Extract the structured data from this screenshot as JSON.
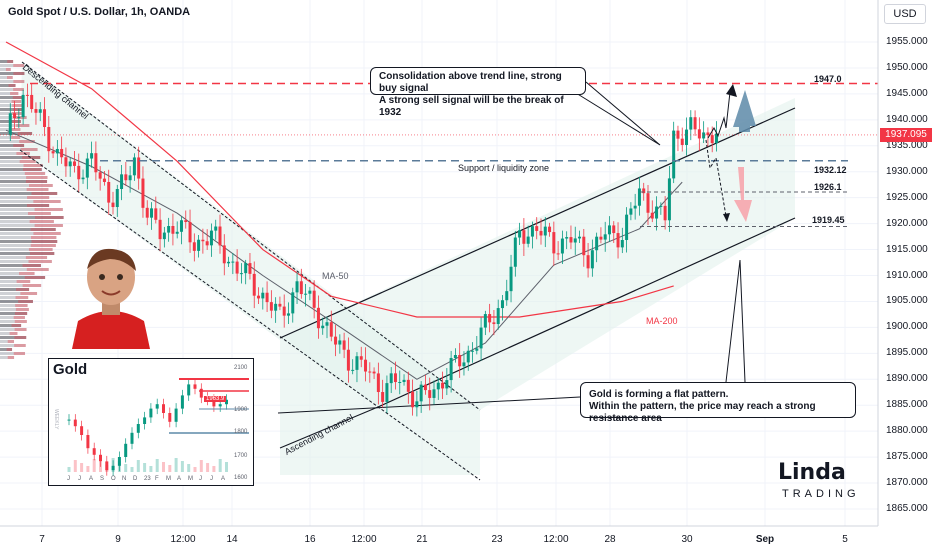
{
  "header": {
    "title": "Gold Spot / U.S. Dollar, 1h, OANDA",
    "currency": "USD"
  },
  "y_axis": {
    "ticks": [
      1955,
      1950,
      1945,
      1940,
      1935,
      1930,
      1925,
      1920,
      1915,
      1910,
      1905,
      1900,
      1895,
      1890,
      1885,
      1880,
      1875,
      1870,
      1865
    ],
    "tick_labels": [
      "1955.000",
      "1950.000",
      "1945.000",
      "1940.000",
      "1935.000",
      "1930.000",
      "1925.000",
      "1920.000",
      "1915.000",
      "1910.000",
      "1905.000",
      "1900.000",
      "1895.000",
      "1890.000",
      "1885.000",
      "1880.000",
      "1875.000",
      "1870.000",
      "1865.000"
    ]
  },
  "x_axis": {
    "labels": [
      "7",
      "9",
      "12:00",
      "14",
      "16",
      "12:00",
      "21",
      "23",
      "12:00",
      "28",
      "30",
      "Sep",
      "5"
    ],
    "bold": [
      "Sep"
    ]
  },
  "levels": [
    {
      "label": "1947.0",
      "value": 1947.0
    },
    {
      "label": "1932.12",
      "value": 1932.12
    },
    {
      "label": "1926.1",
      "value": 1926.1
    },
    {
      "label": "1919.45",
      "value": 1919.45
    }
  ],
  "current_price": {
    "label": "1937.095",
    "value": 1937.095
  },
  "annotations": {
    "callout_top_line1": "Consolidation above trend line, strong buy signal",
    "callout_top_line2": "A strong sell signal will be the break of 1932",
    "callout_bottom_line1": "Gold is forming a flat pattern.",
    "callout_bottom_line2": "Within the pattern, the price may reach a strong resistance area",
    "support_zone": "Support / liquidity zone",
    "descending_channel": "Descending channel",
    "ascending_channel": "Ascending channel",
    "ma50": "MA-50",
    "ma200": "MA-200"
  },
  "inset": {
    "title": "Gold",
    "y_labels": [
      "2100",
      "1900",
      "1800",
      "1700",
      "1600"
    ],
    "price_tag": "1963.9",
    "x_labels": [
      "J",
      "J",
      "A",
      "S",
      "O",
      "N",
      "D",
      "23",
      "F",
      "M",
      "A",
      "M",
      "J",
      "J",
      "A"
    ],
    "watermark": "WEEKLY"
  },
  "logo": {
    "top": "Linda",
    "bottom": "TRADING"
  },
  "colors": {
    "up": "#089981",
    "down": "#f23645",
    "ma200": "#f23645",
    "ma50": "#5d606b",
    "channel_fill": "#e3f1ec",
    "badge": "#f23645"
  },
  "chart_data": {
    "type": "candlestick",
    "timeframe": "1h",
    "ylim": [
      1862,
      1960
    ],
    "close_path": [
      [
        0,
        1937
      ],
      [
        4,
        1945
      ],
      [
        8,
        1940
      ],
      [
        12,
        1933
      ],
      [
        16,
        1930
      ],
      [
        20,
        1932
      ],
      [
        24,
        1925
      ],
      [
        28,
        1928
      ],
      [
        30,
        1932
      ],
      [
        33,
        1922
      ],
      [
        36,
        1918
      ],
      [
        40,
        1920
      ],
      [
        44,
        1916
      ],
      [
        48,
        1918
      ],
      [
        52,
        1913
      ],
      [
        56,
        1910
      ],
      [
        60,
        1906
      ],
      [
        64,
        1902
      ],
      [
        68,
        1908
      ],
      [
        72,
        1904
      ],
      [
        76,
        1898
      ],
      [
        80,
        1894
      ],
      [
        84,
        1892
      ],
      [
        88,
        1888
      ],
      [
        92,
        1890
      ],
      [
        96,
        1886
      ],
      [
        100,
        1888
      ],
      [
        104,
        1892
      ],
      [
        108,
        1895
      ],
      [
        112,
        1900
      ],
      [
        116,
        1905
      ],
      [
        120,
        1918
      ],
      [
        124,
        1919
      ],
      [
        128,
        1916
      ],
      [
        132,
        1917
      ],
      [
        136,
        1914
      ],
      [
        140,
        1918
      ],
      [
        144,
        1918
      ],
      [
        148,
        1926
      ],
      [
        152,
        1922
      ],
      [
        154,
        1921
      ],
      [
        156,
        1937
      ],
      [
        160,
        1938
      ],
      [
        164,
        1937
      ],
      [
        166,
        1938
      ]
    ],
    "ma50": [
      [
        0,
        1938
      ],
      [
        20,
        1931
      ],
      [
        40,
        1922
      ],
      [
        60,
        1910
      ],
      [
        80,
        1899
      ],
      [
        96,
        1890
      ],
      [
        112,
        1897
      ],
      [
        128,
        1912
      ],
      [
        148,
        1919
      ],
      [
        158,
        1928
      ]
    ],
    "ma200": [
      [
        0,
        1955
      ],
      [
        20,
        1946
      ],
      [
        40,
        1932
      ],
      [
        60,
        1915
      ],
      [
        76,
        1906
      ],
      [
        96,
        1902
      ],
      [
        120,
        1902
      ],
      [
        144,
        1905
      ],
      [
        156,
        1908
      ]
    ],
    "current_price": 1937.095,
    "levels": [
      1947.0,
      1932.12,
      1926.1,
      1919.45
    ]
  }
}
